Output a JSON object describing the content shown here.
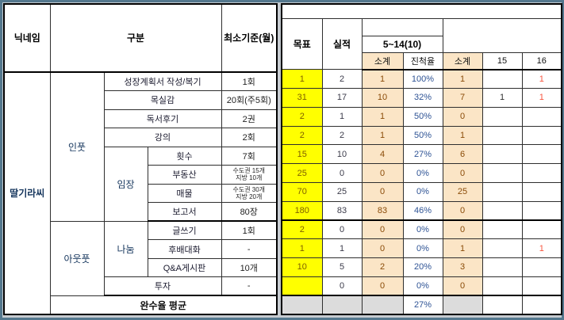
{
  "left": {
    "headers": {
      "nickname": "닉네임",
      "category": "구분",
      "min": "최소기준(월)"
    },
    "nickname": "딸기라씨",
    "groups": {
      "input": "인풋",
      "output": "아웃풋",
      "visit": "임장",
      "share": "나눔"
    },
    "footer": "완수율 평균"
  },
  "right": {
    "headers": {
      "goal": "목표",
      "actual": "실적",
      "period": "5~14(10)",
      "subtotal1": "소계",
      "progress": "진척율",
      "subtotal2": "소계",
      "col15": "15",
      "col16": "16"
    },
    "footer_progress": "27%"
  },
  "rows": [
    {
      "item": "성장계획서 작성/복기",
      "min": "1회",
      "goal": "1",
      "actual": "2",
      "sub1": "1",
      "progress": "100%",
      "sub2": "1",
      "c15": "",
      "c16": "1"
    },
    {
      "item": "목실감",
      "min": "20회(주5회)",
      "goal": "31",
      "actual": "17",
      "sub1": "10",
      "progress": "32%",
      "sub2": "7",
      "c15": "1",
      "c16": "1"
    },
    {
      "item": "독서후기",
      "min": "2권",
      "goal": "2",
      "actual": "1",
      "sub1": "1",
      "progress": "50%",
      "sub2": "0",
      "c15": "",
      "c16": ""
    },
    {
      "item": "강의",
      "min": "2회",
      "goal": "2",
      "actual": "2",
      "sub1": "1",
      "progress": "50%",
      "sub2": "1",
      "c15": "",
      "c16": ""
    },
    {
      "item": "횟수",
      "min": "7회",
      "goal": "15",
      "actual": "10",
      "sub1": "4",
      "progress": "27%",
      "sub2": "6",
      "c15": "",
      "c16": ""
    },
    {
      "item": "부동산",
      "min": "수도권 15개\n지방 10개",
      "goal": "25",
      "actual": "0",
      "sub1": "0",
      "progress": "0%",
      "sub2": "0",
      "c15": "",
      "c16": ""
    },
    {
      "item": "매물",
      "min": "수도권 30개\n지방 20개",
      "goal": "70",
      "actual": "25",
      "sub1": "0",
      "progress": "0%",
      "sub2": "25",
      "c15": "",
      "c16": ""
    },
    {
      "item": "보고서",
      "min": "80장",
      "goal": "180",
      "actual": "83",
      "sub1": "83",
      "progress": "46%",
      "sub2": "0",
      "c15": "",
      "c16": ""
    },
    {
      "item": "글쓰기",
      "min": "1회",
      "goal": "2",
      "actual": "0",
      "sub1": "0",
      "progress": "0%",
      "sub2": "0",
      "c15": "",
      "c16": ""
    },
    {
      "item": "후배대화",
      "min": "-",
      "goal": "1",
      "actual": "1",
      "sub1": "0",
      "progress": "0%",
      "sub2": "1",
      "c15": "",
      "c16": "1"
    },
    {
      "item": "Q&A게시판",
      "min": "10개",
      "goal": "10",
      "actual": "5",
      "sub1": "2",
      "progress": "20%",
      "sub2": "3",
      "c15": "",
      "c16": ""
    },
    {
      "item": "투자",
      "min": "-",
      "goal": "",
      "actual": "0",
      "sub1": "0",
      "progress": "0%",
      "sub2": "0",
      "c15": "",
      "c16": ""
    }
  ],
  "colors": {
    "goal_bg": "#ffff00",
    "subtotal_bg": "#fbe5c6",
    "footer_bg": "#dcdcdc",
    "progress_text": "#2e5395",
    "goal_text": "#7f6000",
    "subtotal_text": "#8a4b08",
    "alert_text": "#f8553f",
    "nickname_text": "#17375e",
    "frame": "#54788e"
  }
}
